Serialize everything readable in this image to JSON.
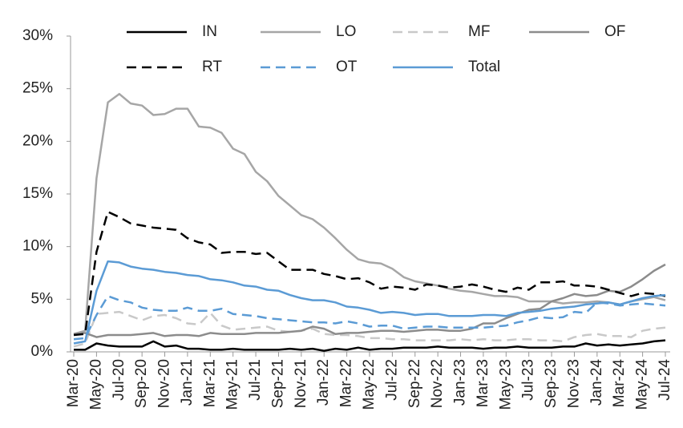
{
  "chart_data": {
    "type": "line",
    "categories": [
      "Mar-20",
      null,
      "May-20",
      null,
      "Jul-20",
      null,
      "Sep-20",
      null,
      "Nov-20",
      null,
      "Jan-21",
      null,
      "Mar-21",
      null,
      "May-21",
      null,
      "Jul-21",
      null,
      "Sep-21",
      null,
      "Nov-21",
      null,
      "Jan-22",
      null,
      "Mar-22",
      null,
      "May-22",
      null,
      "Jul-22",
      null,
      "Sep-22",
      null,
      "Nov-22",
      null,
      "Jan-23",
      null,
      "Mar-23",
      null,
      "May-23",
      null,
      "Jul-23",
      null,
      "Sep-23",
      null,
      "Nov-23",
      null,
      "Jan-24",
      null,
      "Mar-24",
      null,
      "May-24",
      null,
      "Jul-24"
    ],
    "ylim": [
      0,
      30
    ],
    "yticks": [
      {
        "value": 0,
        "label": "0%"
      },
      {
        "value": 5,
        "label": "5%"
      },
      {
        "value": 10,
        "label": "10%"
      },
      {
        "value": 15,
        "label": "15%"
      },
      {
        "value": 20,
        "label": "20%"
      },
      {
        "value": 25,
        "label": "25%"
      },
      {
        "value": 30,
        "label": "30%"
      }
    ],
    "grid": false,
    "series": [
      {
        "name": "IN",
        "color": "#000000",
        "dashed": false,
        "values": [
          0.2,
          0.2,
          0.8,
          0.6,
          0.5,
          0.5,
          0.5,
          1.0,
          0.5,
          0.6,
          0.3,
          0.3,
          0.2,
          0.2,
          0.3,
          0.2,
          0.2,
          0.2,
          0.2,
          0.3,
          0.2,
          0.3,
          0.1,
          0.3,
          0.2,
          0.4,
          0.2,
          0.3,
          0.3,
          0.4,
          0.4,
          0.4,
          0.5,
          0.4,
          0.4,
          0.4,
          0.3,
          0.4,
          0.4,
          0.5,
          0.4,
          0.4,
          0.4,
          0.5,
          0.5,
          0.8,
          0.6,
          0.7,
          0.6,
          0.7,
          0.8,
          1.0,
          1.1
        ]
      },
      {
        "name": "LO",
        "color": "#a6a6a6",
        "dashed": false,
        "values": [
          1.7,
          2.0,
          16.5,
          23.7,
          24.5,
          23.6,
          23.4,
          22.5,
          22.6,
          23.1,
          23.1,
          21.4,
          21.3,
          20.8,
          19.3,
          18.8,
          17.1,
          16.2,
          14.8,
          13.9,
          13.0,
          12.6,
          11.8,
          10.8,
          9.7,
          8.8,
          8.5,
          8.4,
          7.9,
          7.1,
          6.7,
          6.5,
          6.3,
          6.0,
          5.8,
          5.7,
          5.5,
          5.3,
          5.3,
          5.2,
          4.8,
          4.8,
          4.8,
          4.6,
          4.7,
          4.7,
          4.8,
          4.7,
          4.5,
          4.8,
          5.0,
          5.2,
          4.9
        ]
      },
      {
        "name": "MF",
        "color": "#c9c9c9",
        "dashed": true,
        "values": [
          0.5,
          0.8,
          3.6,
          3.7,
          3.8,
          3.4,
          3.0,
          3.4,
          3.5,
          3.2,
          2.7,
          2.6,
          3.7,
          2.5,
          2.1,
          2.2,
          2.3,
          2.4,
          2.0,
          1.9,
          2.0,
          2.2,
          1.7,
          1.6,
          1.6,
          1.5,
          1.3,
          1.3,
          1.2,
          1.2,
          1.1,
          1.1,
          1.1,
          1.1,
          1.2,
          1.1,
          1.2,
          1.1,
          1.1,
          1.2,
          1.2,
          1.1,
          1.1,
          1.0,
          1.4,
          1.6,
          1.7,
          1.5,
          1.5,
          1.4,
          2.0,
          2.2,
          2.3
        ]
      },
      {
        "name": "OF",
        "color": "#8c8c8c",
        "dashed": false,
        "values": [
          1.7,
          1.8,
          1.4,
          1.6,
          1.6,
          1.6,
          1.7,
          1.8,
          1.5,
          1.6,
          1.6,
          1.5,
          1.8,
          1.7,
          1.7,
          1.7,
          1.8,
          1.8,
          1.8,
          1.9,
          2.0,
          2.4,
          2.2,
          1.7,
          1.8,
          1.8,
          1.9,
          2.0,
          2.0,
          1.9,
          2.0,
          2.1,
          2.1,
          2.0,
          2.0,
          2.2,
          2.7,
          2.7,
          3.2,
          3.6,
          4.0,
          4.1,
          4.8,
          5.1,
          5.5,
          5.3,
          5.4,
          5.8,
          5.7,
          6.2,
          6.9,
          7.7,
          8.3
        ]
      },
      {
        "name": "RT",
        "color": "#000000",
        "dashed": true,
        "values": [
          1.6,
          1.7,
          9.5,
          13.3,
          12.8,
          12.2,
          12.0,
          11.8,
          11.7,
          11.6,
          10.8,
          10.4,
          10.2,
          9.4,
          9.5,
          9.5,
          9.3,
          9.4,
          8.6,
          7.8,
          7.8,
          7.8,
          7.4,
          7.2,
          6.9,
          7.0,
          6.6,
          6.0,
          6.2,
          6.1,
          5.9,
          6.4,
          6.3,
          6.1,
          6.2,
          6.4,
          6.2,
          5.9,
          5.7,
          6.1,
          5.9,
          6.6,
          6.6,
          6.7,
          6.3,
          6.3,
          6.2,
          5.9,
          5.6,
          5.3,
          5.6,
          5.5,
          5.3
        ]
      },
      {
        "name": "OT",
        "color": "#5b9bd5",
        "dashed": true,
        "values": [
          1.2,
          1.3,
          3.5,
          5.3,
          4.9,
          4.7,
          4.2,
          4.0,
          3.9,
          3.9,
          4.2,
          3.9,
          3.9,
          4.1,
          3.6,
          3.5,
          3.4,
          3.2,
          3.1,
          3.0,
          2.9,
          2.8,
          2.8,
          2.7,
          2.9,
          2.7,
          2.4,
          2.5,
          2.5,
          2.2,
          2.3,
          2.4,
          2.4,
          2.3,
          2.3,
          2.3,
          2.3,
          2.4,
          2.5,
          2.8,
          3.0,
          3.3,
          3.2,
          3.3,
          3.8,
          3.7,
          4.7,
          4.6,
          4.4,
          4.5,
          4.6,
          4.5,
          4.4
        ]
      },
      {
        "name": "Total",
        "color": "#5b9bd5",
        "dashed": false,
        "values": [
          0.8,
          1.0,
          5.8,
          8.6,
          8.5,
          8.1,
          7.9,
          7.8,
          7.6,
          7.5,
          7.3,
          7.2,
          6.9,
          6.8,
          6.6,
          6.3,
          6.2,
          5.9,
          5.8,
          5.4,
          5.1,
          4.9,
          4.9,
          4.7,
          4.3,
          4.2,
          4.0,
          3.7,
          3.8,
          3.7,
          3.5,
          3.6,
          3.6,
          3.4,
          3.4,
          3.4,
          3.5,
          3.5,
          3.4,
          3.7,
          3.8,
          3.9,
          4.1,
          4.2,
          4.3,
          4.5,
          4.6,
          4.7,
          4.5,
          4.8,
          5.1,
          5.3,
          5.4
        ]
      }
    ]
  }
}
